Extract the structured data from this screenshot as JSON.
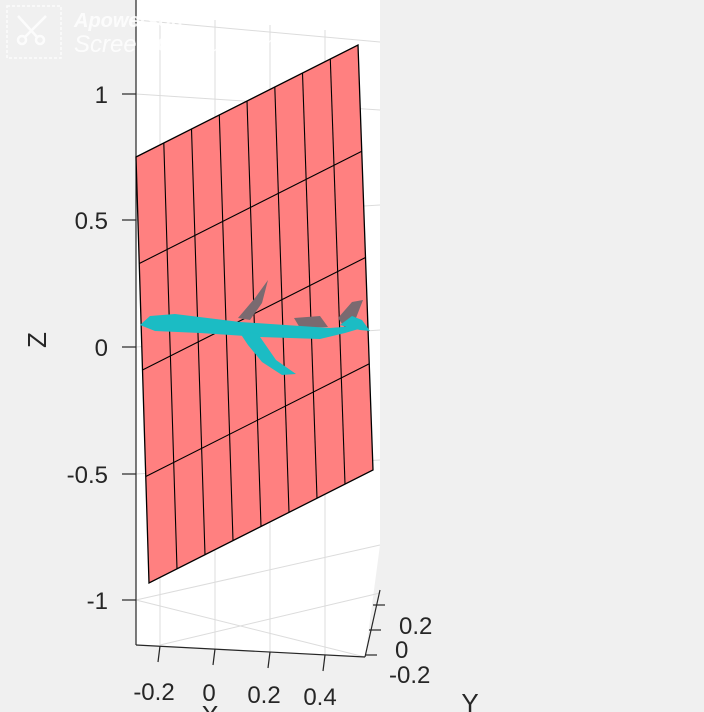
{
  "chart_data": {
    "type": "surface3d",
    "title": "",
    "xlabel": "X",
    "ylabel": "Y",
    "zlabel": "Z",
    "x_ticks": [
      "-0.2",
      "0",
      "0.2",
      "0.4"
    ],
    "y_ticks": [
      "0.2",
      "0",
      "-0.2"
    ],
    "z_ticks": [
      "1",
      "0.5",
      "0",
      "-0.5",
      "-1"
    ],
    "zlim": [
      -1,
      1
    ],
    "grid": true,
    "plane": {
      "color": "#ff8080",
      "edge_color": "#000000",
      "rows": 4,
      "cols": 8,
      "z_corner_values": {
        "top_left": 0.75,
        "top_right": 1.2,
        "bottom_right": -0.5,
        "bottom_left": -0.95
      }
    },
    "aircraft": {
      "color": "#1bbcc4",
      "shadow_color": "#7a6a70"
    }
  },
  "watermark": {
    "brand": "Apowersoft",
    "product": "Screen Capture Pro",
    "icon": "scissors-icon"
  }
}
